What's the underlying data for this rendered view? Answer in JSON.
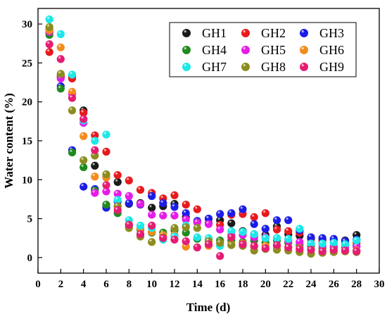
{
  "chart_data": {
    "type": "scatter",
    "title": "",
    "xlabel": "Time (d)",
    "ylabel": "Water content (%)",
    "xlim": [
      0,
      30
    ],
    "ylim": [
      -2,
      32
    ],
    "xticks": [
      0,
      2,
      4,
      6,
      8,
      10,
      12,
      14,
      16,
      18,
      20,
      22,
      24,
      26,
      28,
      30
    ],
    "yticks": [
      0,
      5,
      10,
      15,
      20,
      25,
      30
    ],
    "grid": false,
    "legend_position": "top-right",
    "legend_columns": 3,
    "series": [
      {
        "name": "GH1",
        "color": "#1a1a1a",
        "points": [
          [
            1,
            28.9
          ],
          [
            2,
            23.2
          ],
          [
            3,
            23.2
          ],
          [
            4,
            18.9
          ],
          [
            5,
            11.8
          ],
          [
            6,
            10.3
          ],
          [
            7,
            9.7
          ],
          [
            8,
            6.9
          ],
          [
            9,
            7.0
          ],
          [
            10,
            6.4
          ],
          [
            11,
            6.6
          ],
          [
            12,
            6.9
          ],
          [
            13,
            5.2
          ],
          [
            14,
            4.6
          ],
          [
            15,
            4.4
          ],
          [
            16,
            4.8
          ],
          [
            17,
            4.4
          ],
          [
            18,
            3.4
          ],
          [
            19,
            3.0
          ],
          [
            20,
            2.9
          ],
          [
            21,
            4.0
          ],
          [
            22,
            3.0
          ],
          [
            23,
            2.8
          ],
          [
            24,
            2.4
          ],
          [
            25,
            2.3
          ],
          [
            26,
            2.3
          ],
          [
            27,
            2.2
          ],
          [
            28,
            2.9
          ]
        ]
      },
      {
        "name": "GH2",
        "color": "#e8191c",
        "points": [
          [
            1,
            26.4
          ],
          [
            2,
            23.4
          ],
          [
            3,
            23.0
          ],
          [
            4,
            18.6
          ],
          [
            5,
            15.7
          ],
          [
            6,
            13.6
          ],
          [
            7,
            10.6
          ],
          [
            8,
            9.9
          ],
          [
            9,
            8.7
          ],
          [
            10,
            8.3
          ],
          [
            11,
            7.6
          ],
          [
            12,
            8.0
          ],
          [
            13,
            6.8
          ],
          [
            14,
            6.2
          ],
          [
            15,
            5.0
          ],
          [
            16,
            4.2
          ],
          [
            17,
            5.5
          ],
          [
            18,
            5.6
          ],
          [
            19,
            5.2
          ],
          [
            20,
            5.7
          ],
          [
            21,
            3.6
          ],
          [
            22,
            3.4
          ],
          [
            23,
            3.2
          ],
          [
            24,
            2.5
          ],
          [
            25,
            2.1
          ],
          [
            26,
            2.0
          ],
          [
            27,
            2.0
          ],
          [
            28,
            1.9
          ]
        ]
      },
      {
        "name": "GH3",
        "color": "#1c1ce8",
        "points": [
          [
            1,
            29.3
          ],
          [
            2,
            22.0
          ],
          [
            3,
            13.8
          ],
          [
            4,
            9.1
          ],
          [
            5,
            8.8
          ],
          [
            6,
            6.4
          ],
          [
            7,
            7.2
          ],
          [
            8,
            7.0
          ],
          [
            9,
            6.8
          ],
          [
            10,
            7.9
          ],
          [
            11,
            7.0
          ],
          [
            12,
            6.5
          ],
          [
            13,
            5.7
          ],
          [
            14,
            4.7
          ],
          [
            15,
            5.0
          ],
          [
            16,
            5.6
          ],
          [
            17,
            5.7
          ],
          [
            18,
            6.2
          ],
          [
            19,
            4.3
          ],
          [
            20,
            3.7
          ],
          [
            21,
            4.8
          ],
          [
            22,
            4.8
          ],
          [
            23,
            3.5
          ],
          [
            24,
            2.6
          ],
          [
            25,
            2.5
          ],
          [
            26,
            2.4
          ],
          [
            27,
            2.1
          ],
          [
            28,
            2.3
          ]
        ]
      },
      {
        "name": "GH4",
        "color": "#1f8a1f",
        "points": [
          [
            1,
            28.6
          ],
          [
            2,
            21.7
          ],
          [
            3,
            13.5
          ],
          [
            4,
            11.6
          ],
          [
            5,
            8.6
          ],
          [
            6,
            6.8
          ],
          [
            7,
            5.7
          ],
          [
            8,
            4.0
          ],
          [
            9,
            3.6
          ],
          [
            10,
            3.2
          ],
          [
            11,
            3.2
          ],
          [
            12,
            3.5
          ],
          [
            13,
            3.2
          ],
          [
            14,
            2.4
          ],
          [
            15,
            2.4
          ],
          [
            16,
            2.2
          ],
          [
            17,
            2.2
          ],
          [
            18,
            2.0
          ],
          [
            19,
            2.2
          ],
          [
            20,
            1.9
          ],
          [
            21,
            2.2
          ],
          [
            22,
            1.9
          ],
          [
            23,
            1.6
          ],
          [
            24,
            1.5
          ],
          [
            25,
            1.2
          ],
          [
            26,
            1.3
          ],
          [
            27,
            1.5
          ],
          [
            28,
            1.5
          ]
        ]
      },
      {
        "name": "GH5",
        "color": "#e61ce6",
        "points": [
          [
            1,
            29.0
          ],
          [
            2,
            23.0
          ],
          [
            3,
            21.0
          ],
          [
            4,
            17.3
          ],
          [
            5,
            8.3
          ],
          [
            6,
            8.5
          ],
          [
            7,
            8.2
          ],
          [
            8,
            7.9
          ],
          [
            9,
            6.9
          ],
          [
            10,
            5.5
          ],
          [
            11,
            5.4
          ],
          [
            12,
            5.4
          ],
          [
            13,
            4.9
          ],
          [
            14,
            4.5
          ],
          [
            15,
            4.3
          ],
          [
            16,
            3.6
          ],
          [
            17,
            2.9
          ],
          [
            18,
            2.9
          ],
          [
            19,
            2.6
          ],
          [
            20,
            2.6
          ],
          [
            21,
            2.5
          ],
          [
            22,
            2.2
          ],
          [
            23,
            2.0
          ],
          [
            24,
            1.8
          ],
          [
            25,
            1.5
          ],
          [
            26,
            1.5
          ],
          [
            27,
            1.3
          ],
          [
            28,
            1.4
          ]
        ]
      },
      {
        "name": "GH6",
        "color": "#f28c1c",
        "points": [
          [
            1,
            29.2
          ],
          [
            2,
            27.0
          ],
          [
            3,
            21.3
          ],
          [
            4,
            15.6
          ],
          [
            5,
            10.4
          ],
          [
            6,
            10.3
          ],
          [
            7,
            6.5
          ],
          [
            8,
            4.3
          ],
          [
            9,
            3.8
          ],
          [
            10,
            3.3
          ],
          [
            11,
            2.9
          ],
          [
            12,
            2.9
          ],
          [
            13,
            1.4
          ],
          [
            14,
            1.3
          ],
          [
            15,
            1.5
          ],
          [
            16,
            1.6
          ],
          [
            17,
            1.7
          ],
          [
            18,
            1.8
          ],
          [
            19,
            1.4
          ],
          [
            20,
            1.5
          ],
          [
            21,
            1.4
          ],
          [
            22,
            1.3
          ],
          [
            23,
            1.2
          ],
          [
            24,
            1.0
          ],
          [
            25,
            0.8
          ],
          [
            26,
            0.9
          ],
          [
            27,
            0.8
          ],
          [
            28,
            0.9
          ]
        ]
      },
      {
        "name": "GH7",
        "color": "#1ce8e8",
        "points": [
          [
            1,
            30.6
          ],
          [
            2,
            28.7
          ],
          [
            3,
            23.5
          ],
          [
            4,
            17.6
          ],
          [
            5,
            15.0
          ],
          [
            6,
            15.8
          ],
          [
            7,
            7.4
          ],
          [
            8,
            4.8
          ],
          [
            9,
            4.1
          ],
          [
            10,
            3.8
          ],
          [
            11,
            2.3
          ],
          [
            12,
            2.7
          ],
          [
            13,
            4.1
          ],
          [
            14,
            2.6
          ],
          [
            15,
            2.5
          ],
          [
            16,
            1.5
          ],
          [
            17,
            3.4
          ],
          [
            18,
            3.3
          ],
          [
            19,
            3.0
          ],
          [
            20,
            2.5
          ],
          [
            21,
            2.5
          ],
          [
            22,
            2.4
          ],
          [
            23,
            3.7
          ],
          [
            24,
            1.8
          ],
          [
            25,
            1.8
          ],
          [
            26,
            1.9
          ],
          [
            27,
            1.7
          ],
          [
            28,
            2.2
          ]
        ]
      },
      {
        "name": "GH8",
        "color": "#8c8c1f",
        "points": [
          [
            1,
            29.6
          ],
          [
            2,
            23.6
          ],
          [
            3,
            18.9
          ],
          [
            4,
            12.5
          ],
          [
            5,
            13.1
          ],
          [
            6,
            10.7
          ],
          [
            7,
            6.6
          ],
          [
            8,
            3.8
          ],
          [
            9,
            2.7
          ],
          [
            10,
            2.0
          ],
          [
            11,
            2.6
          ],
          [
            12,
            3.8
          ],
          [
            13,
            3.9
          ],
          [
            14,
            3.8
          ],
          [
            15,
            2.1
          ],
          [
            16,
            1.9
          ],
          [
            17,
            1.6
          ],
          [
            18,
            1.5
          ],
          [
            19,
            0.9
          ],
          [
            20,
            1.1
          ],
          [
            21,
            1.0
          ],
          [
            22,
            0.9
          ],
          [
            23,
            0.7
          ],
          [
            24,
            0.5
          ],
          [
            25,
            0.6
          ],
          [
            26,
            0.7
          ],
          [
            27,
            0.8
          ],
          [
            28,
            0.7
          ]
        ]
      },
      {
        "name": "GH9",
        "color": "#e61c73",
        "points": [
          [
            1,
            27.4
          ],
          [
            2,
            25.5
          ],
          [
            3,
            20.5
          ],
          [
            4,
            17.8
          ],
          [
            5,
            13.8
          ],
          [
            6,
            9.3
          ],
          [
            7,
            6.1
          ],
          [
            8,
            4.2
          ],
          [
            9,
            3.0
          ],
          [
            10,
            4.1
          ],
          [
            11,
            2.5
          ],
          [
            12,
            2.3
          ],
          [
            13,
            2.1
          ],
          [
            14,
            1.3
          ],
          [
            15,
            1.7
          ],
          [
            16,
            0.2
          ],
          [
            17,
            2.6
          ],
          [
            18,
            1.7
          ],
          [
            19,
            1.5
          ],
          [
            20,
            1.2
          ],
          [
            21,
            1.6
          ],
          [
            22,
            1.3
          ],
          [
            23,
            1.1
          ],
          [
            24,
            1.0
          ],
          [
            25,
            0.8
          ],
          [
            26,
            1.0
          ],
          [
            27,
            0.9
          ],
          [
            28,
            0.8
          ]
        ]
      }
    ]
  }
}
